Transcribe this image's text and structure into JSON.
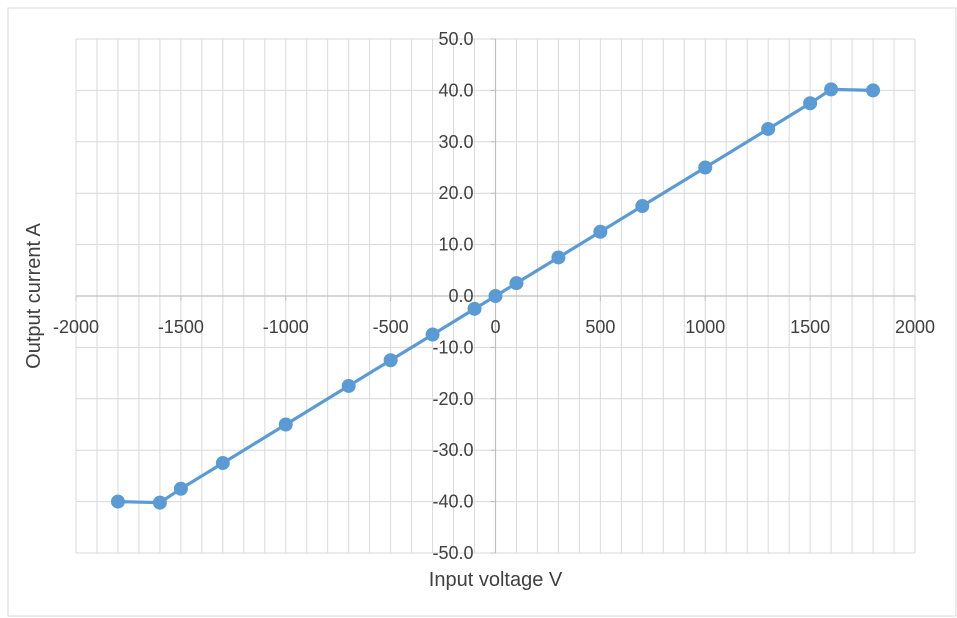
{
  "chart_data": {
    "type": "line",
    "title": "",
    "xlabel": "Input voltage V",
    "ylabel": "Output current A",
    "xlim": [
      -2000,
      2000
    ],
    "ylim": [
      -50,
      50
    ],
    "x_ticks": [
      -2000,
      -1500,
      -1000,
      -500,
      0,
      500,
      1000,
      1500,
      2000
    ],
    "x_tick_labels": [
      "-2000",
      "-1500",
      "-1000",
      "-500",
      "0",
      "500",
      "1000",
      "1500",
      "2000"
    ],
    "x_minor_step": 100,
    "y_ticks": [
      -50,
      -40,
      -30,
      -20,
      -10,
      0,
      10,
      20,
      30,
      40,
      50
    ],
    "y_tick_labels": [
      "-50.0",
      "-40.0",
      "-30.0",
      "-20.0",
      "-10.0",
      "0.0",
      "10.0",
      "20.0",
      "30.0",
      "40.0",
      "50.0"
    ],
    "grid": true,
    "axes_cross_at_zero": true,
    "series": [
      {
        "color": "#5b9bd5",
        "marker": "circle",
        "x": [
          -1800,
          -1600,
          -1500,
          -1300,
          -1000,
          -700,
          -500,
          -300,
          -100,
          0,
          100,
          300,
          500,
          700,
          1000,
          1300,
          1500,
          1600,
          1800
        ],
        "y": [
          -40,
          -40.2,
          -37.5,
          -32.5,
          -25,
          -17.5,
          -12.5,
          -7.5,
          -2.5,
          0,
          2.5,
          7.5,
          12.5,
          17.5,
          25,
          32.5,
          37.5,
          40.2,
          40
        ]
      }
    ]
  },
  "colors": {
    "grid": "#d9d9d9",
    "axis": "#bfbfbf",
    "text": "#404040",
    "series": "#5b9bd5"
  }
}
